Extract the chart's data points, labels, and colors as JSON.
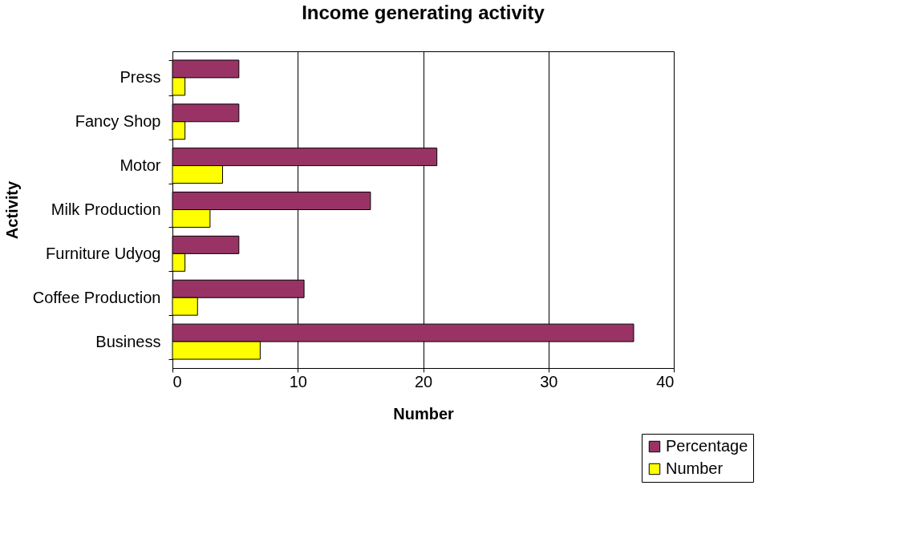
{
  "chart_data": {
    "type": "bar",
    "orientation": "horizontal",
    "title": "Income generating activity",
    "xlabel": "Number",
    "ylabel": "Activity",
    "categories": [
      "Press",
      "Fancy Shop",
      "Motor",
      "Milk Production",
      "Furniture Udyog",
      "Coffee Production",
      "Business"
    ],
    "series": [
      {
        "name": "Percentage",
        "color": "#993366",
        "values": [
          5.3,
          5.3,
          21.1,
          15.8,
          5.3,
          10.5,
          36.8
        ]
      },
      {
        "name": "Number",
        "color": "#ffff00",
        "values": [
          1,
          1,
          4,
          3,
          1,
          2,
          7
        ]
      }
    ],
    "xlim": [
      0,
      40
    ],
    "xticks": [
      0,
      10,
      20,
      30,
      40
    ],
    "grid": "x",
    "legend": "bottom right"
  }
}
